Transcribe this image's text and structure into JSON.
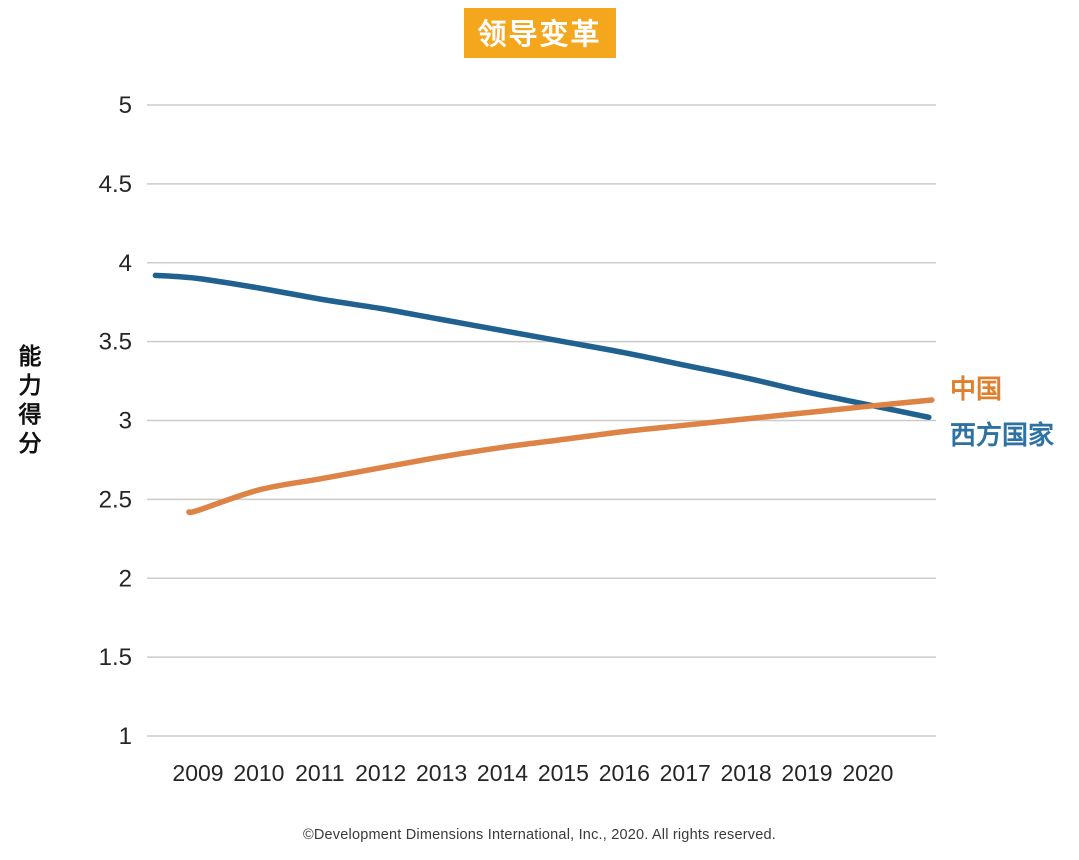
{
  "title": {
    "text": "领导变革",
    "bg_color": "#F4A71D",
    "text_color": "#FFFFFF"
  },
  "y_axis_title": "能力得分",
  "legend": {
    "china": {
      "label": "中国",
      "color": "#E0802F"
    },
    "west": {
      "label": "西方国家",
      "color": "#2D72A3"
    }
  },
  "footer": {
    "copyright": "©Development Dimensions International, Inc., 2020. All rights reserved."
  },
  "chart_data": {
    "type": "line",
    "title": "领导变革",
    "xlabel": "",
    "ylabel": "能力得分",
    "categories": [
      "2009",
      "2010",
      "2011",
      "2012",
      "2013",
      "2014",
      "2015",
      "2016",
      "2017",
      "2018",
      "2019",
      "2020"
    ],
    "ylim": [
      1,
      5
    ],
    "yticks": [
      1,
      1.5,
      2,
      2.5,
      3,
      3.5,
      4,
      4.5,
      5
    ],
    "grid": true,
    "legend_position": "right",
    "grid_color": "#CBCBCB",
    "tick_color": "#262626",
    "series": [
      {
        "name": "西方国家",
        "color": "#20618F",
        "points": [
          [
            2008.3,
            3.92
          ],
          [
            2009,
            3.9
          ],
          [
            2010,
            3.84
          ],
          [
            2011,
            3.77
          ],
          [
            2012,
            3.71
          ],
          [
            2013,
            3.64
          ],
          [
            2014,
            3.57
          ],
          [
            2015,
            3.5
          ],
          [
            2016,
            3.43
          ],
          [
            2017,
            3.35
          ],
          [
            2018,
            3.27
          ],
          [
            2019,
            3.18
          ],
          [
            2020,
            3.1
          ],
          [
            2021.0,
            3.02
          ]
        ]
      },
      {
        "name": "中国",
        "color": "#DC8345",
        "points": [
          [
            2008.85,
            2.42
          ],
          [
            2009,
            2.43
          ],
          [
            2010,
            2.56
          ],
          [
            2011,
            2.63
          ],
          [
            2012,
            2.7
          ],
          [
            2013,
            2.77
          ],
          [
            2014,
            2.83
          ],
          [
            2015,
            2.88
          ],
          [
            2016,
            2.93
          ],
          [
            2017,
            2.97
          ],
          [
            2018,
            3.01
          ],
          [
            2019,
            3.05
          ],
          [
            2020,
            3.09
          ],
          [
            2021.05,
            3.13
          ]
        ]
      }
    ]
  }
}
